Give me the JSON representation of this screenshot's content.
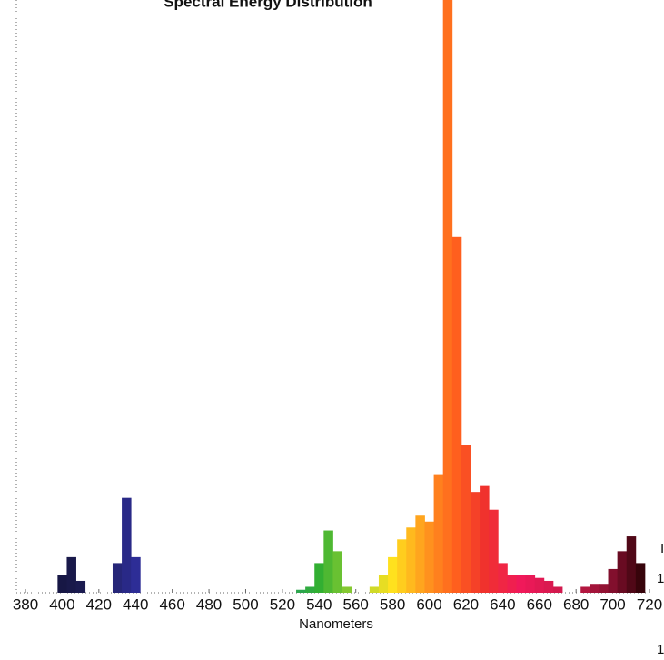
{
  "chart_data": {
    "type": "spectrum",
    "title": "Spectral Energy Distribution",
    "x_label": "Nanometers",
    "x": [
      380,
      385,
      390,
      395,
      400,
      405,
      410,
      415,
      420,
      425,
      430,
      435,
      440,
      445,
      450,
      455,
      460,
      465,
      470,
      475,
      480,
      485,
      490,
      495,
      500,
      505,
      510,
      515,
      520,
      525,
      530,
      535,
      540,
      545,
      550,
      555,
      560,
      565,
      570,
      575,
      580,
      585,
      590,
      595,
      600,
      605,
      610,
      615,
      620,
      625,
      630,
      635,
      640,
      645,
      650,
      655,
      660,
      665,
      670,
      675,
      680,
      685,
      690,
      695,
      700,
      705,
      710,
      715,
      720
    ],
    "values": [
      0,
      0,
      0,
      0,
      3,
      6,
      2,
      0,
      0,
      0,
      5,
      16,
      6,
      0,
      0,
      0,
      0,
      0,
      0,
      0,
      0,
      0,
      0,
      0,
      0,
      0,
      0,
      0,
      0,
      0,
      0.5,
      1,
      5,
      10.5,
      7,
      1,
      0,
      0,
      1,
      3,
      6,
      9,
      11,
      13,
      12,
      20,
      100,
      60,
      25,
      17,
      18,
      14,
      5,
      3,
      3,
      3,
      2.5,
      2,
      1,
      0,
      0,
      1,
      1.5,
      1.5,
      4,
      7,
      9.5,
      5,
      0
    ],
    "xlim": [
      380,
      720
    ],
    "ylim": [
      0,
      100
    ],
    "xticks": [
      380,
      400,
      420,
      440,
      460,
      480,
      500,
      520,
      540,
      560,
      580,
      600,
      620,
      640,
      660,
      680,
      700,
      720
    ],
    "annotations": [
      "I",
      "1",
      "1"
    ]
  }
}
